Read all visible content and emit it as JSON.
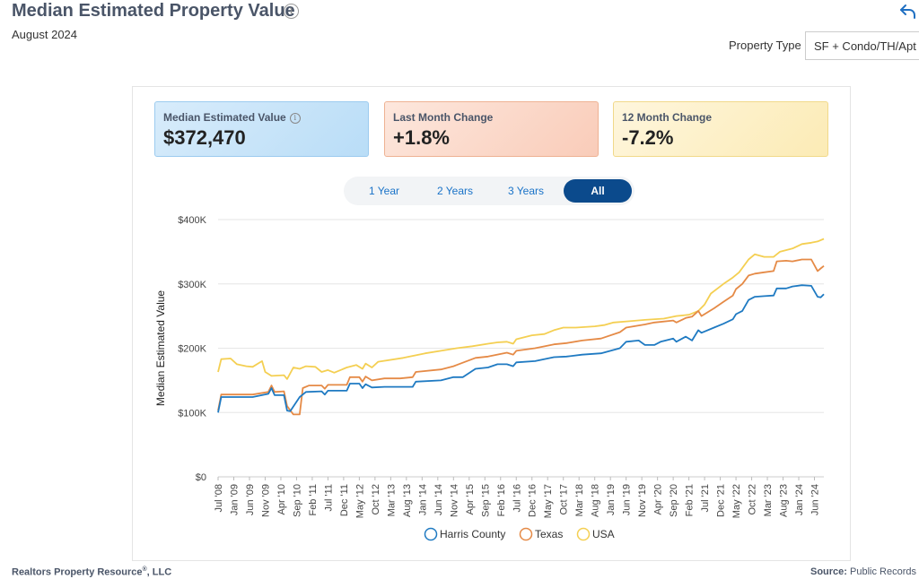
{
  "header": {
    "title": "Median Estimated Property Value",
    "subtitle": "August 2024",
    "property_type_label": "Property Type",
    "property_type_value": "SF + Condo/TH/Apt"
  },
  "cards": [
    {
      "label": "Median Estimated Value",
      "value": "$372,470"
    },
    {
      "label": "Last Month Change",
      "value": "+1.8%"
    },
    {
      "label": "12 Month Change",
      "value": "-7.2%"
    }
  ],
  "range_buttons": [
    {
      "label": "1 Year"
    },
    {
      "label": "2 Years"
    },
    {
      "label": "3 Years"
    },
    {
      "label": "All",
      "active": true
    }
  ],
  "footer": {
    "left": "Realtors Property Resource",
    "left_mark": "®",
    "left_suffix": ", LLC",
    "right_label": "Source:",
    "right_value": "Public Records"
  },
  "colors": {
    "harris": "#1f7ac2",
    "texas": "#e58a46",
    "usa": "#f4cf52"
  },
  "chart_data": {
    "type": "line",
    "ylabel": "Median Estimated Value",
    "ylim": [
      0,
      400000
    ],
    "yticks": [
      0,
      100000,
      200000,
      300000,
      400000
    ],
    "ytick_labels": [
      "$0",
      "$100K",
      "$200K",
      "$300K",
      "$400K"
    ],
    "x_start": "2008-07",
    "x_end": "2024-08",
    "xtick_labels": [
      "Jul '08",
      "Jan '09",
      "Jun '09",
      "Nov '09",
      "Apr '10",
      "Sep '10",
      "Feb '11",
      "Jul '11",
      "Dec '11",
      "May '12",
      "Oct '12",
      "Mar '13",
      "Aug '13",
      "Jan '14",
      "Jun '14",
      "Nov '14",
      "Apr '15",
      "Sep '15",
      "Feb '16",
      "Jul '16",
      "Dec '16",
      "May '17",
      "Oct '17",
      "Mar '18",
      "Aug '18",
      "Jan '19",
      "Jun '19",
      "Nov '19",
      "Apr '20",
      "Sep '20",
      "Feb '21",
      "Jul '21",
      "Dec '21",
      "May '22",
      "Oct '22",
      "Mar '23",
      "Aug '23",
      "Jan '24",
      "Jun '24"
    ],
    "grid": true,
    "legend_position": "bottom",
    "series": [
      {
        "name": "Harris County",
        "points": [
          [
            "2008-07",
            100000
          ],
          [
            "2008-08",
            124000
          ],
          [
            "2009-01",
            124000
          ],
          [
            "2009-06",
            124000
          ],
          [
            "2009-11",
            129000
          ],
          [
            "2009-12",
            138000
          ],
          [
            "2010-01",
            127000
          ],
          [
            "2010-04",
            127000
          ],
          [
            "2010-05",
            103000
          ],
          [
            "2010-06",
            102000
          ],
          [
            "2010-09",
            124000
          ],
          [
            "2010-11",
            132000
          ],
          [
            "2011-04",
            133000
          ],
          [
            "2011-05",
            128000
          ],
          [
            "2011-06",
            134000
          ],
          [
            "2011-12",
            134000
          ],
          [
            "2012-01",
            145000
          ],
          [
            "2012-04",
            145000
          ],
          [
            "2012-05",
            138000
          ],
          [
            "2012-06",
            144000
          ],
          [
            "2012-08",
            139000
          ],
          [
            "2012-12",
            140000
          ],
          [
            "2013-05",
            140000
          ],
          [
            "2013-09",
            140000
          ],
          [
            "2013-10",
            148000
          ],
          [
            "2014-06",
            150000
          ],
          [
            "2014-10",
            155000
          ],
          [
            "2015-01",
            155000
          ],
          [
            "2015-05",
            168000
          ],
          [
            "2015-09",
            170000
          ],
          [
            "2015-12",
            175000
          ],
          [
            "2016-03",
            175000
          ],
          [
            "2016-05",
            172000
          ],
          [
            "2016-06",
            178000
          ],
          [
            "2016-12",
            180000
          ],
          [
            "2017-06",
            186000
          ],
          [
            "2017-10",
            187000
          ],
          [
            "2018-03",
            190000
          ],
          [
            "2018-09",
            192000
          ],
          [
            "2019-03",
            200000
          ],
          [
            "2019-05",
            210000
          ],
          [
            "2019-09",
            212000
          ],
          [
            "2019-11",
            205000
          ],
          [
            "2020-02",
            205000
          ],
          [
            "2020-04",
            210000
          ],
          [
            "2020-08",
            215000
          ],
          [
            "2020-09",
            210000
          ],
          [
            "2020-12",
            218000
          ],
          [
            "2021-02",
            212000
          ],
          [
            "2021-04",
            228000
          ],
          [
            "2021-05",
            224000
          ],
          [
            "2021-09",
            232000
          ],
          [
            "2021-12",
            238000
          ],
          [
            "2022-03",
            245000
          ],
          [
            "2022-04",
            253000
          ],
          [
            "2022-06",
            258000
          ],
          [
            "2022-08",
            275000
          ],
          [
            "2022-10",
            280000
          ],
          [
            "2023-01",
            281000
          ],
          [
            "2023-04",
            282000
          ],
          [
            "2023-05",
            293000
          ],
          [
            "2023-08",
            293000
          ],
          [
            "2023-10",
            296000
          ],
          [
            "2024-01",
            298000
          ],
          [
            "2024-04",
            297000
          ],
          [
            "2024-06",
            280000
          ],
          [
            "2024-07",
            279000
          ],
          [
            "2024-08",
            284000
          ]
        ]
      },
      {
        "name": "Texas",
        "points": [
          [
            "2008-07",
            103000
          ],
          [
            "2008-08",
            128000
          ],
          [
            "2009-01",
            128000
          ],
          [
            "2009-06",
            128000
          ],
          [
            "2009-11",
            132000
          ],
          [
            "2009-12",
            142000
          ],
          [
            "2010-01",
            132000
          ],
          [
            "2010-04",
            133000
          ],
          [
            "2010-05",
            110000
          ],
          [
            "2010-07",
            97000
          ],
          [
            "2010-09",
            97000
          ],
          [
            "2010-10",
            138000
          ],
          [
            "2010-12",
            142000
          ],
          [
            "2011-04",
            142000
          ],
          [
            "2011-05",
            137000
          ],
          [
            "2011-06",
            143000
          ],
          [
            "2011-12",
            143000
          ],
          [
            "2012-01",
            155000
          ],
          [
            "2012-04",
            155000
          ],
          [
            "2012-05",
            148000
          ],
          [
            "2012-06",
            156000
          ],
          [
            "2012-08",
            150000
          ],
          [
            "2012-12",
            153000
          ],
          [
            "2013-05",
            153000
          ],
          [
            "2013-09",
            155000
          ],
          [
            "2013-10",
            163000
          ],
          [
            "2014-06",
            167000
          ],
          [
            "2014-10",
            172000
          ],
          [
            "2015-05",
            185000
          ],
          [
            "2015-09",
            187000
          ],
          [
            "2016-03",
            193000
          ],
          [
            "2016-05",
            190000
          ],
          [
            "2016-06",
            196000
          ],
          [
            "2016-12",
            200000
          ],
          [
            "2017-06",
            206000
          ],
          [
            "2017-10",
            208000
          ],
          [
            "2018-03",
            212000
          ],
          [
            "2018-09",
            215000
          ],
          [
            "2019-03",
            225000
          ],
          [
            "2019-05",
            232000
          ],
          [
            "2019-11",
            237000
          ],
          [
            "2020-02",
            240000
          ],
          [
            "2020-08",
            243000
          ],
          [
            "2020-09",
            240000
          ],
          [
            "2020-12",
            247000
          ],
          [
            "2021-02",
            249000
          ],
          [
            "2021-04",
            258000
          ],
          [
            "2021-05",
            250000
          ],
          [
            "2021-09",
            262000
          ],
          [
            "2021-12",
            272000
          ],
          [
            "2022-03",
            282000
          ],
          [
            "2022-04",
            292000
          ],
          [
            "2022-06",
            300000
          ],
          [
            "2022-08",
            313000
          ],
          [
            "2022-10",
            316000
          ],
          [
            "2023-01",
            318000
          ],
          [
            "2023-04",
            320000
          ],
          [
            "2023-05",
            335000
          ],
          [
            "2023-08",
            336000
          ],
          [
            "2023-10",
            335000
          ],
          [
            "2024-01",
            338000
          ],
          [
            "2024-04",
            338000
          ],
          [
            "2024-06",
            320000
          ],
          [
            "2024-07",
            324000
          ],
          [
            "2024-08",
            328000
          ]
        ]
      },
      {
        "name": "USA",
        "points": [
          [
            "2008-07",
            163000
          ],
          [
            "2008-08",
            183000
          ],
          [
            "2008-11",
            184000
          ],
          [
            "2009-01",
            175000
          ],
          [
            "2009-04",
            172000
          ],
          [
            "2009-06",
            171000
          ],
          [
            "2009-08",
            177000
          ],
          [
            "2009-09",
            180000
          ],
          [
            "2009-10",
            163000
          ],
          [
            "2009-12",
            157000
          ],
          [
            "2010-04",
            158000
          ],
          [
            "2010-05",
            152000
          ],
          [
            "2010-07",
            170000
          ],
          [
            "2010-09",
            168000
          ],
          [
            "2010-11",
            172000
          ],
          [
            "2011-02",
            171000
          ],
          [
            "2011-04",
            163000
          ],
          [
            "2011-06",
            166000
          ],
          [
            "2011-08",
            162000
          ],
          [
            "2011-10",
            166000
          ],
          [
            "2011-12",
            170000
          ],
          [
            "2012-03",
            174000
          ],
          [
            "2012-05",
            168000
          ],
          [
            "2012-06",
            176000
          ],
          [
            "2012-08",
            170000
          ],
          [
            "2012-10",
            179000
          ],
          [
            "2013-06",
            185000
          ],
          [
            "2014-01",
            192000
          ],
          [
            "2014-06",
            196000
          ],
          [
            "2014-11",
            200000
          ],
          [
            "2015-04",
            203000
          ],
          [
            "2015-09",
            207000
          ],
          [
            "2015-12",
            209000
          ],
          [
            "2016-03",
            210000
          ],
          [
            "2016-05",
            207000
          ],
          [
            "2016-06",
            214000
          ],
          [
            "2016-11",
            220000
          ],
          [
            "2017-03",
            222000
          ],
          [
            "2017-06",
            228000
          ],
          [
            "2017-09",
            232000
          ],
          [
            "2018-01",
            232000
          ],
          [
            "2018-07",
            234000
          ],
          [
            "2018-10",
            236000
          ],
          [
            "2019-01",
            240000
          ],
          [
            "2019-06",
            242000
          ],
          [
            "2019-11",
            244000
          ],
          [
            "2020-05",
            246000
          ],
          [
            "2020-09",
            250000
          ],
          [
            "2021-01",
            252000
          ],
          [
            "2021-04",
            258000
          ],
          [
            "2021-06",
            268000
          ],
          [
            "2021-08",
            285000
          ],
          [
            "2021-12",
            300000
          ],
          [
            "2022-03",
            310000
          ],
          [
            "2022-05",
            318000
          ],
          [
            "2022-08",
            338000
          ],
          [
            "2022-10",
            346000
          ],
          [
            "2023-01",
            342000
          ],
          [
            "2023-04",
            342000
          ],
          [
            "2023-06",
            350000
          ],
          [
            "2023-10",
            355000
          ],
          [
            "2024-01",
            362000
          ],
          [
            "2024-04",
            364000
          ],
          [
            "2024-06",
            366000
          ],
          [
            "2024-08",
            370000
          ]
        ]
      }
    ]
  }
}
